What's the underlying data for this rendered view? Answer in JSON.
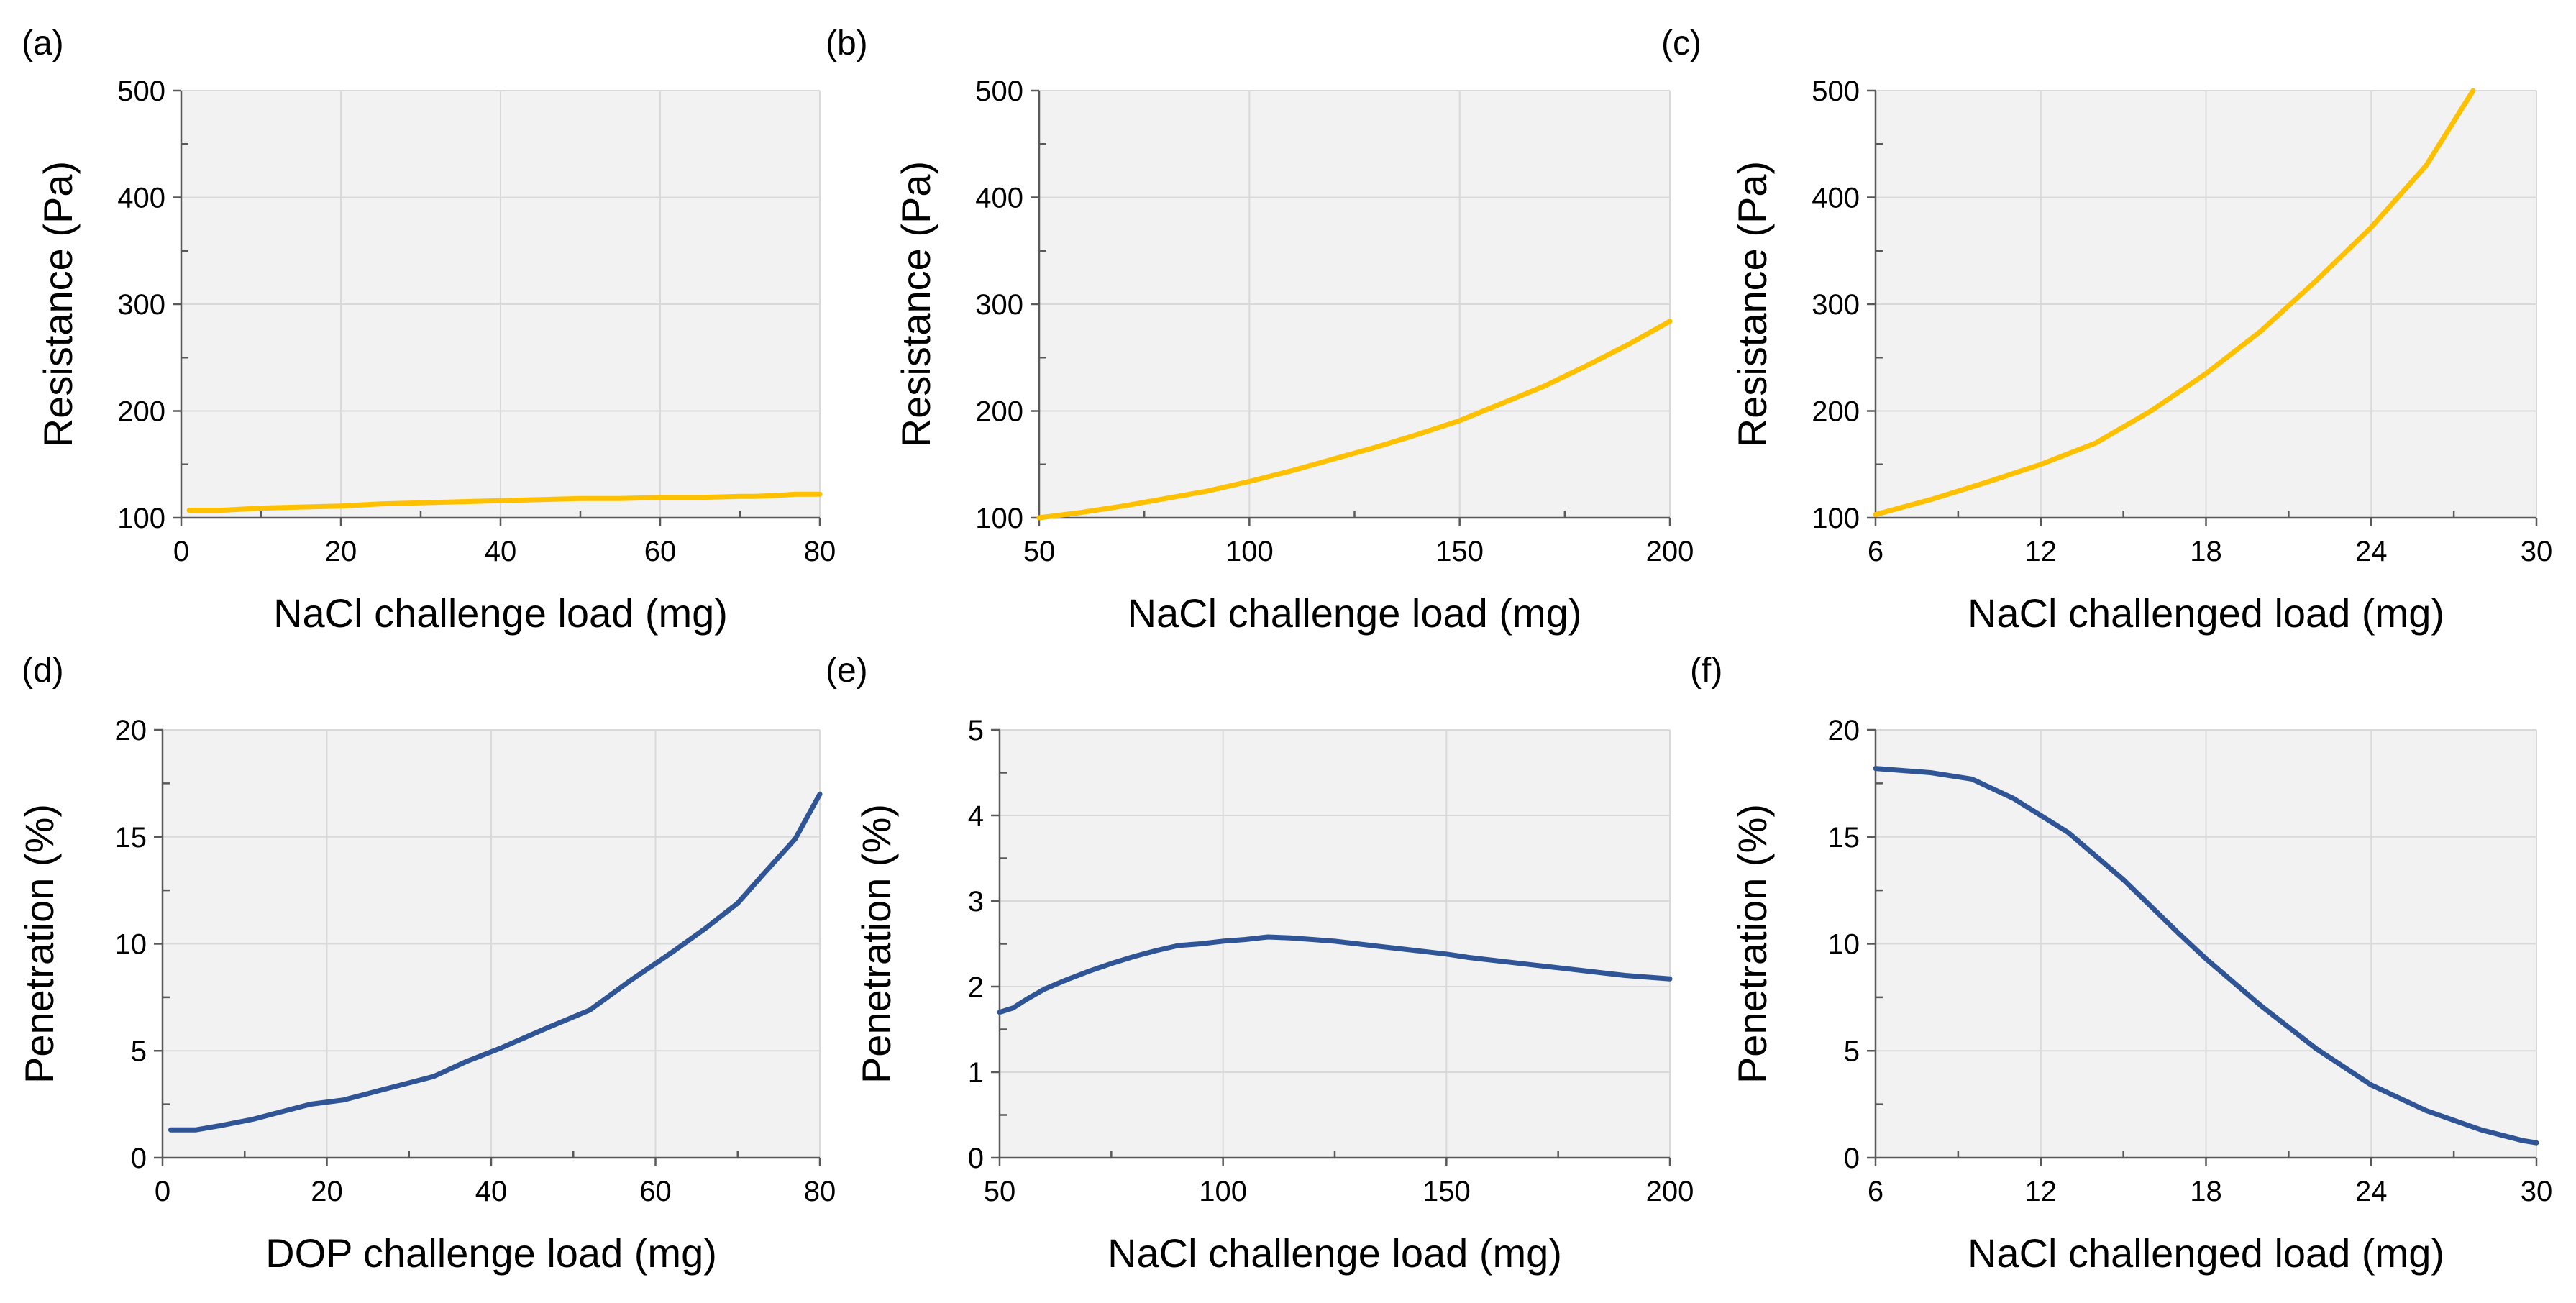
{
  "chart_data": [
    {
      "panel": "(a)",
      "type": "line",
      "xlabel": "NaCl challenge load (mg)",
      "ylabel": "Resistance (Pa)",
      "xlim": [
        0,
        80
      ],
      "ylim": [
        100,
        500
      ],
      "xticks": [
        0,
        20,
        40,
        60,
        80
      ],
      "yticks": [
        100,
        200,
        300,
        400,
        500
      ],
      "series": [
        {
          "name": "Resistance",
          "color": "#FFC000",
          "x": [
            1,
            5,
            10,
            15,
            20,
            25,
            30,
            35,
            40,
            45,
            50,
            55,
            60,
            65,
            70,
            72,
            75,
            77,
            80
          ],
          "y": [
            107,
            107,
            109,
            110,
            111,
            113,
            114,
            115,
            116,
            117,
            118,
            118,
            119,
            119,
            120,
            120,
            121,
            122,
            122
          ]
        }
      ]
    },
    {
      "panel": "(b)",
      "type": "line",
      "xlabel": "NaCl challenge load (mg)",
      "ylabel": "Resistance (Pa)",
      "xlim": [
        50,
        200
      ],
      "ylim": [
        100,
        500
      ],
      "xticks": [
        50,
        100,
        150,
        200
      ],
      "yticks": [
        100,
        200,
        300,
        400,
        500
      ],
      "series": [
        {
          "name": "Resistance",
          "color": "#FFC000",
          "x": [
            50,
            60,
            70,
            80,
            90,
            100,
            110,
            120,
            130,
            140,
            150,
            160,
            170,
            180,
            190,
            200
          ],
          "y": [
            100,
            105,
            111,
            118,
            125,
            134,
            144,
            155,
            166,
            178,
            191,
            207,
            223,
            242,
            262,
            284
          ]
        }
      ]
    },
    {
      "panel": "(c)",
      "type": "line",
      "xlabel": "NaCl challenged load (mg)",
      "ylabel": "Resistance (Pa)",
      "xlim": [
        6,
        30
      ],
      "ylim": [
        100,
        500
      ],
      "xticks": [
        6,
        12,
        18,
        24,
        30
      ],
      "yticks": [
        100,
        200,
        300,
        400,
        500
      ],
      "series": [
        {
          "name": "Resistance",
          "color": "#FFC000",
          "x": [
            6,
            8,
            10,
            12,
            14,
            16,
            18,
            20,
            22,
            24,
            26,
            27.7
          ],
          "y": [
            103,
            117,
            133,
            150,
            170,
            200,
            235,
            275,
            322,
            372,
            430,
            500
          ]
        }
      ]
    },
    {
      "panel": "(d)",
      "type": "line",
      "xlabel": "DOP challenge load (mg)",
      "ylabel": "Penetration (%)",
      "xlim": [
        0,
        80
      ],
      "ylim": [
        0,
        20
      ],
      "xticks": [
        0,
        20,
        40,
        60,
        80
      ],
      "yticks": [
        0,
        5,
        10,
        15,
        20
      ],
      "series": [
        {
          "name": "Penetration",
          "color": "#2F5597",
          "x": [
            1,
            4,
            7,
            11,
            15,
            18,
            22,
            26,
            30,
            33,
            37,
            41,
            47,
            52,
            57,
            62,
            66,
            70,
            73,
            77,
            80
          ],
          "y": [
            1.3,
            1.3,
            1.5,
            1.8,
            2.2,
            2.5,
            2.7,
            3.1,
            3.5,
            3.8,
            4.5,
            5.1,
            6.1,
            6.9,
            8.3,
            9.6,
            10.7,
            11.9,
            13.2,
            14.9,
            17.0
          ]
        }
      ]
    },
    {
      "panel": "(e)",
      "type": "line",
      "xlabel": "NaCl challenge load (mg)",
      "ylabel": "Penetration (%)",
      "xlim": [
        50,
        200
      ],
      "ylim": [
        0,
        5
      ],
      "xticks": [
        50,
        100,
        150,
        200
      ],
      "yticks": [
        0,
        1,
        2,
        3,
        4,
        5
      ],
      "series": [
        {
          "name": "Penetration",
          "color": "#2F5597",
          "x": [
            50,
            53,
            56,
            60,
            65,
            70,
            75,
            80,
            85,
            90,
            95,
            100,
            105,
            110,
            115,
            120,
            125,
            130,
            135,
            140,
            145,
            150,
            155,
            160,
            165,
            170,
            175,
            180,
            185,
            190,
            195,
            200
          ],
          "y": [
            1.7,
            1.75,
            1.85,
            1.97,
            2.08,
            2.18,
            2.27,
            2.35,
            2.42,
            2.48,
            2.5,
            2.53,
            2.55,
            2.58,
            2.57,
            2.55,
            2.53,
            2.5,
            2.47,
            2.44,
            2.41,
            2.38,
            2.34,
            2.31,
            2.28,
            2.25,
            2.22,
            2.19,
            2.16,
            2.13,
            2.11,
            2.09
          ]
        }
      ]
    },
    {
      "panel": "(f)",
      "type": "line",
      "xlabel": "NaCl challenged load (mg)",
      "ylabel": "Penetration (%)",
      "xlim": [
        6,
        30
      ],
      "ylim": [
        0,
        20
      ],
      "xticks": [
        6,
        12,
        18,
        24,
        30
      ],
      "yticks": [
        0,
        5,
        10,
        15,
        20
      ],
      "series": [
        {
          "name": "Penetration",
          "color": "#2F5597",
          "x": [
            6,
            8,
            9.5,
            11,
            13,
            15,
            17,
            18,
            20,
            22,
            24,
            26,
            28,
            29.5,
            30
          ],
          "y": [
            18.2,
            18.0,
            17.7,
            16.8,
            15.2,
            13.0,
            10.5,
            9.3,
            7.1,
            5.1,
            3.4,
            2.2,
            1.3,
            0.8,
            0.7
          ]
        }
      ]
    }
  ]
}
